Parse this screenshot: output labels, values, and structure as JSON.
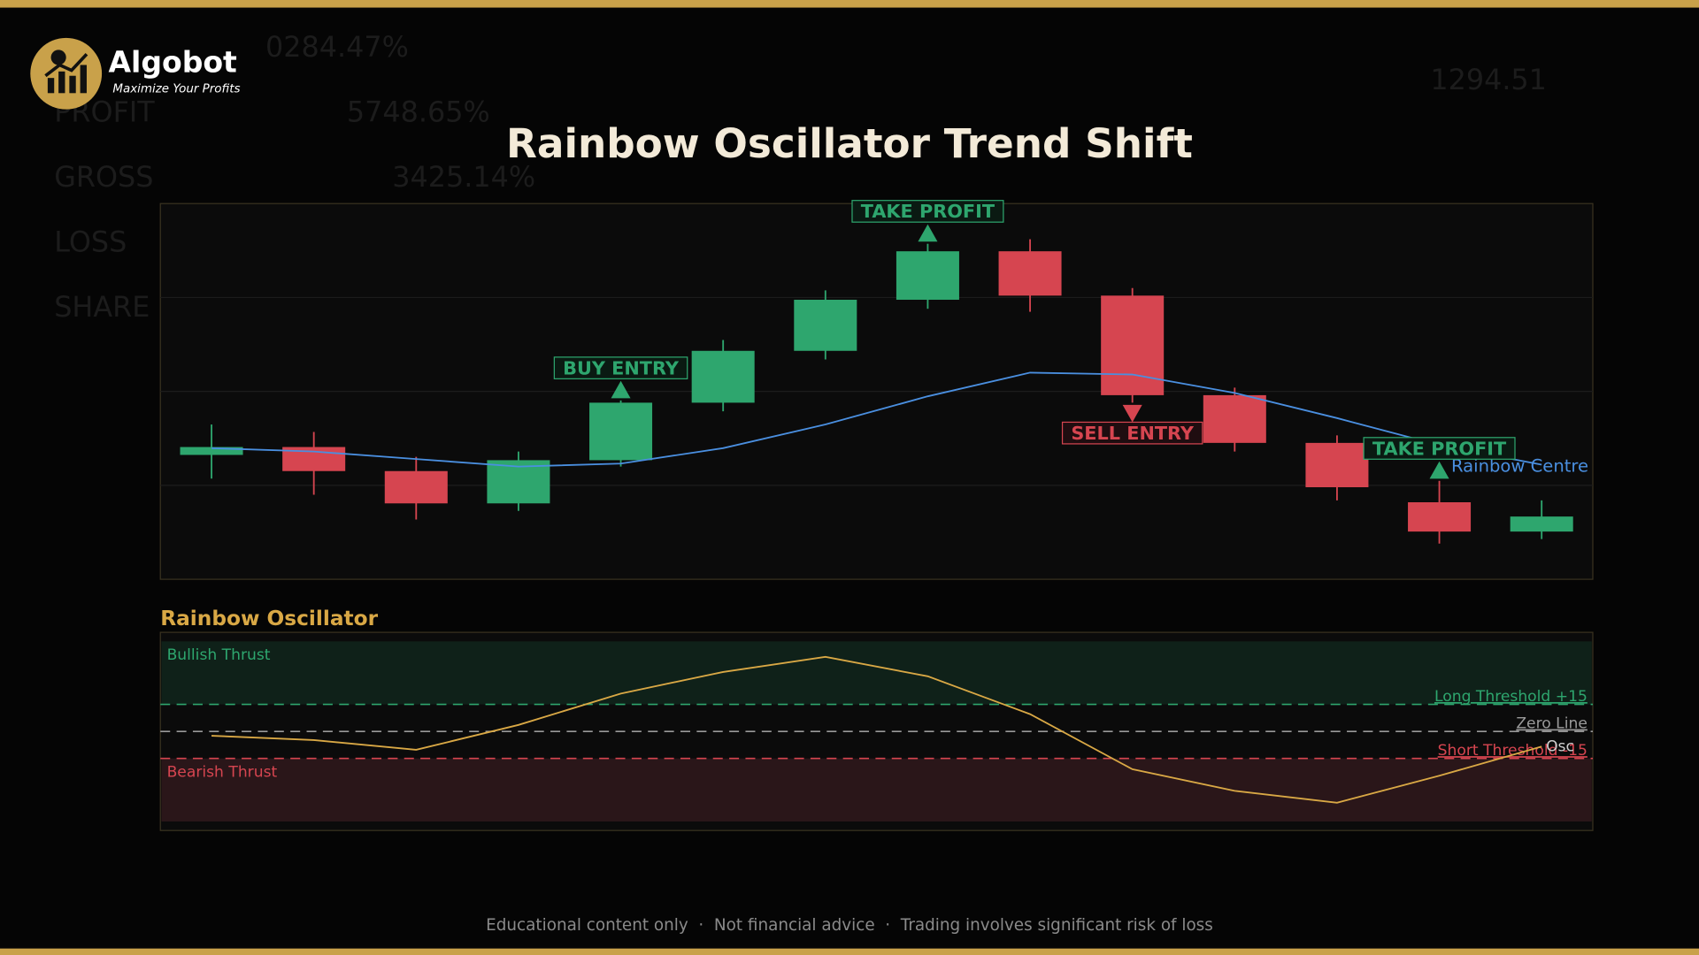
{
  "brand": {
    "name": "Algobot",
    "tagline": "Maximize Your Profits"
  },
  "background_text": [
    "0284.47%",
    "PROFIT",
    "5748.65%",
    "GROSS",
    "3425.14%",
    "LOSS",
    "SHARE",
    "1294.51"
  ],
  "footer": "Educational content only  ·  Not financial advice  ·  Trading involves significant risk of loss",
  "chart_data": [
    {
      "type": "candlestick",
      "title": "Rainbow Oscillator Trend Shift",
      "open": [
        33.1,
        35.2,
        28.8,
        20.2,
        31.7,
        47.0,
        60.8,
        74.4,
        87.3,
        75.5,
        49.0,
        36.3,
        20.5,
        12.7
      ],
      "high": [
        41.2,
        39.2,
        32.6,
        34.0,
        47.6,
        63.7,
        76.9,
        89.3,
        90.5,
        77.5,
        51.0,
        38.3,
        26.2,
        21.0
      ],
      "low": [
        26.8,
        22.5,
        15.9,
        18.2,
        30.0,
        44.7,
        58.5,
        72.0,
        71.2,
        47.0,
        34.0,
        21.0,
        9.5,
        10.7
      ],
      "close": [
        35.2,
        28.8,
        20.2,
        31.7,
        47.0,
        60.8,
        74.4,
        87.3,
        75.5,
        49.0,
        36.3,
        24.5,
        12.7,
        16.7
      ],
      "up_color": "#2ea66e",
      "down_color": "#d64550",
      "ylim": [
        0,
        100
      ],
      "grid": true,
      "overlay": {
        "name": "Rainbow Centre",
        "color": "#4a8fe0",
        "values": [
          34.9,
          34.0,
          32.0,
          30.0,
          30.8,
          34.9,
          41.2,
          48.7,
          55.0,
          54.5,
          49.6,
          42.9,
          35.7,
          30.5
        ]
      },
      "annotations": [
        {
          "label": "BUY ENTRY",
          "index": 4,
          "position": "above",
          "color": "#2ea66e"
        },
        {
          "label": "TAKE PROFIT",
          "index": 7,
          "position": "above",
          "color": "#2ea66e"
        },
        {
          "label": "SELL ENTRY",
          "index": 9,
          "position": "below",
          "color": "#d64550"
        },
        {
          "label": "TAKE PROFIT",
          "index": 12,
          "position": "above",
          "color": "#2ea66e"
        }
      ]
    },
    {
      "type": "line",
      "title": "Rainbow Oscillator",
      "ylim": [
        -55,
        55
      ],
      "series": [
        {
          "name": "Osc",
          "color": "#d9a845",
          "values": [
            -2.4,
            -4.8,
            -10.2,
            3.6,
            21.0,
            33.0,
            41.4,
            30.6,
            9.6,
            -21.0,
            -33.0,
            -39.6,
            -24.6,
            -8.4
          ]
        }
      ],
      "thresholds": [
        {
          "value": 15,
          "label": "Long Threshold +15",
          "color": "#2ea66e"
        },
        {
          "value": 0,
          "label": "Zero Line",
          "color": "#9a9a9a"
        },
        {
          "value": -15,
          "label": "Short Threshold -15",
          "color": "#d64550"
        }
      ],
      "zones": [
        {
          "label": "Bullish Thrust",
          "from": 15,
          "to": 50,
          "color": "#2ea66e",
          "fill": "#0f2119"
        },
        {
          "label": "Bearish Thrust",
          "from": -15,
          "to": -50,
          "color": "#d64550",
          "fill": "#2a1619"
        }
      ]
    }
  ]
}
